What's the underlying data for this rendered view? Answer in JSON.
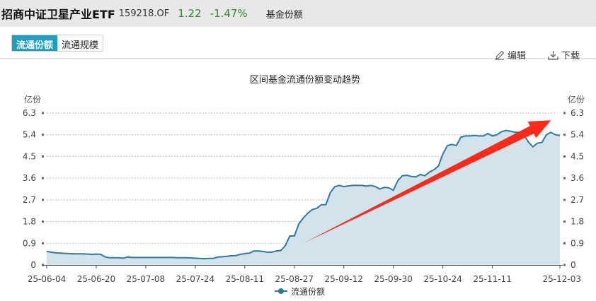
{
  "header": {
    "title": "招商中证卫星产业ETF",
    "code": "159218.OF",
    "price": "1.22",
    "change_pct": "-1.47%",
    "section": "基金份额"
  },
  "tabs": [
    {
      "label": "流通份额",
      "active": true
    },
    {
      "label": "流通规模",
      "active": false
    }
  ],
  "toolbar": {
    "edit_label": "编辑",
    "download_label": "下载",
    "edit_icon": "pencil-icon",
    "download_icon": "download-icon"
  },
  "colors": {
    "line": "#2e7aa0",
    "fill": "#d3e3ec",
    "accent": "#1a9fc0",
    "arrow": "#ff2a1a",
    "up_down": "#2e8b2e"
  },
  "chart_data": {
    "type": "area",
    "title": "区间基金流通份额变动趋势",
    "ylabel_left": "亿份",
    "ylabel_right": "亿份",
    "ylim": [
      0,
      6.3
    ],
    "yticks": [
      "0",
      "0.9",
      "1.8",
      "2.7",
      "3.6",
      "4.5",
      "5.4",
      "6.3"
    ],
    "grid": true,
    "legend_position": "bottom",
    "xticks": [
      {
        "index": 0,
        "label": "25-06-04"
      },
      {
        "index": 11,
        "label": "25-06-20"
      },
      {
        "index": 22,
        "label": "25-07-08"
      },
      {
        "index": 33,
        "label": "25-07-24"
      },
      {
        "index": 44,
        "label": "25-08-11"
      },
      {
        "index": 55,
        "label": "25-08-27"
      },
      {
        "index": 66,
        "label": "25-09-12"
      },
      {
        "index": 77,
        "label": "25-09-30"
      },
      {
        "index": 88,
        "label": "25-10-24"
      },
      {
        "index": 99,
        "label": "25-11-11"
      },
      {
        "index": 114,
        "label": "25-12-03"
      }
    ],
    "series": [
      {
        "name": "流通份额",
        "values": [
          0.56,
          0.53,
          0.5,
          0.49,
          0.48,
          0.47,
          0.46,
          0.46,
          0.46,
          0.45,
          0.44,
          0.45,
          0.44,
          0.33,
          0.3,
          0.3,
          0.3,
          0.28,
          0.33,
          0.31,
          0.31,
          0.31,
          0.31,
          0.31,
          0.31,
          0.31,
          0.31,
          0.31,
          0.31,
          0.3,
          0.3,
          0.3,
          0.29,
          0.28,
          0.27,
          0.26,
          0.27,
          0.27,
          0.33,
          0.34,
          0.36,
          0.38,
          0.39,
          0.44,
          0.47,
          0.49,
          0.58,
          0.58,
          0.56,
          0.53,
          0.53,
          0.58,
          0.6,
          0.8,
          1.2,
          1.2,
          1.7,
          1.95,
          2.15,
          2.3,
          2.35,
          2.5,
          2.5,
          3.0,
          3.25,
          3.3,
          3.25,
          3.28,
          3.3,
          3.3,
          3.3,
          3.27,
          3.3,
          3.25,
          3.15,
          3.22,
          3.2,
          3.1,
          3.5,
          3.7,
          3.72,
          3.67,
          3.65,
          3.75,
          3.7,
          3.85,
          3.95,
          4.1,
          4.6,
          4.95,
          5.0,
          4.95,
          5.3,
          5.35,
          5.35,
          5.37,
          5.35,
          5.35,
          5.45,
          5.35,
          5.4,
          5.52,
          5.58,
          5.55,
          5.5,
          5.5,
          5.4,
          5.1,
          4.9,
          5.05,
          5.08,
          5.4,
          5.5,
          5.4,
          5.37
        ]
      }
    ],
    "annotation": {
      "type": "arrow",
      "from": {
        "index": 57,
        "value": 0.9
      },
      "to": {
        "index": 112,
        "value": 6.0
      }
    }
  }
}
